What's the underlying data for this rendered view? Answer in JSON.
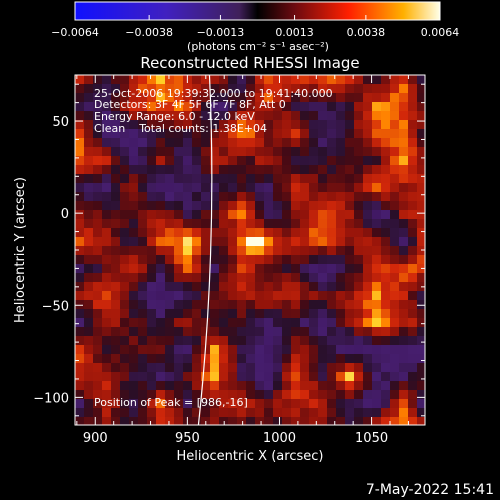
{
  "chart_data": {
    "type": "heatmap",
    "title": "Reconstructed RHESSI Image",
    "xlabel": "Heliocentric X (arcsec)",
    "ylabel": "Heliocentric Y (arcsec)",
    "xlim": [
      889,
      1079
    ],
    "ylim": [
      -115,
      75
    ],
    "x_ticks": [
      "900",
      "950",
      "1000",
      "1050"
    ],
    "x_tick_values": [
      900,
      950,
      1000,
      1050
    ],
    "y_ticks": [
      "50",
      "0",
      "−50",
      "−100"
    ],
    "y_tick_values": [
      50,
      0,
      -50,
      -100
    ],
    "colorbar": {
      "range": [
        -0.0064,
        0.0064
      ],
      "tick_labels": [
        "−0.0064",
        "−0.0038",
        "−0.0013",
        "0.0013",
        "0.0038",
        "0.0064"
      ],
      "tick_values": [
        -0.0064,
        -0.0038,
        -0.0013,
        0.0013,
        0.0038,
        0.0064
      ],
      "units_label": "(photons cm⁻² s⁻¹ asec⁻²)"
    },
    "annotations": {
      "time": "25-Oct-2006 19:39:32.000 to 19:41:40.000",
      "detectors": "Detectors: 3F 4F 5F 6F 7F 8F, Att 0",
      "energy": "Energy Range: 6.0 - 12.0 keV",
      "clean": "Clean    Total counts: 1.38E+04",
      "peak": "Position of Peak = [986,-16]"
    },
    "peak": {
      "x": 986,
      "y": -16
    },
    "limb_x_at_top": 962,
    "limb_x_at_bottom": 956
  },
  "footer_date": "7-May-2022 15:41"
}
